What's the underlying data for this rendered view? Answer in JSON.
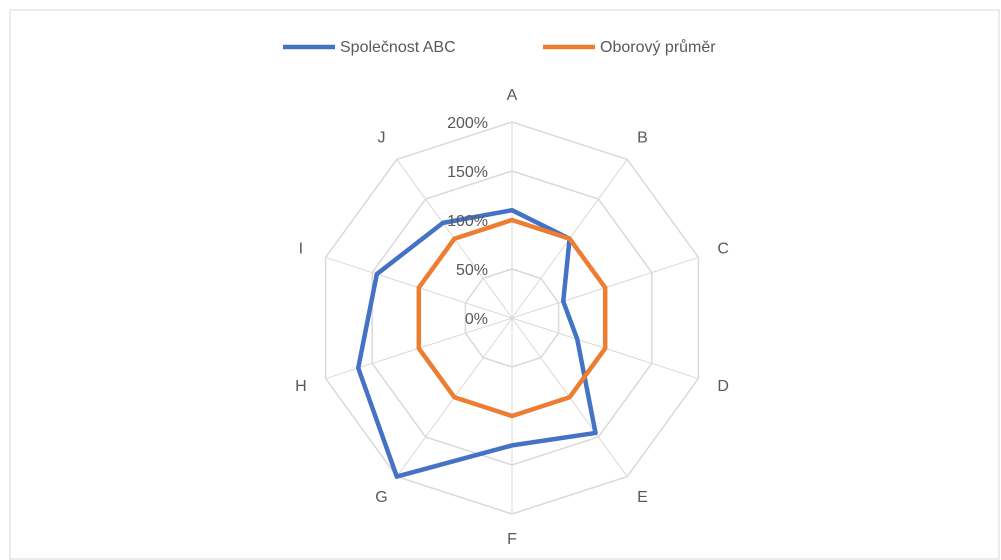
{
  "chart_data": {
    "type": "radar",
    "categories": [
      "A",
      "B",
      "C",
      "D",
      "E",
      "F",
      "G",
      "H",
      "I",
      "J"
    ],
    "series": [
      {
        "name": "Společnost ABC",
        "color": "#4472c4",
        "values": [
          110,
          100,
          55,
          70,
          145,
          130,
          200,
          165,
          145,
          120
        ]
      },
      {
        "name": "Oborový průměr",
        "color": "#ed7d31",
        "values": [
          100,
          100,
          100,
          100,
          100,
          100,
          100,
          100,
          100,
          100
        ]
      }
    ],
    "ylim": [
      0,
      200
    ],
    "yticks": [
      {
        "value": 0,
        "label": "0%"
      },
      {
        "value": 50,
        "label": "50%"
      },
      {
        "value": 100,
        "label": "100%"
      },
      {
        "value": 150,
        "label": "150%"
      },
      {
        "value": 200,
        "label": "200%"
      }
    ],
    "grid": true,
    "legend": "top"
  }
}
